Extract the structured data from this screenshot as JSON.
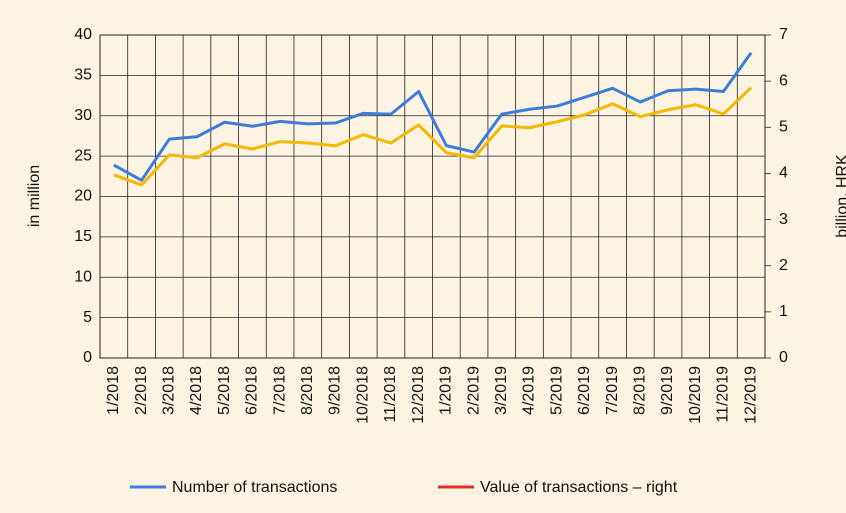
{
  "chart_data": {
    "type": "line",
    "y_label": "in million",
    "y2_label": "billion, HRK",
    "categories": [
      "1/2018",
      "2/2018",
      "3/2018",
      "4/2018",
      "5/2018",
      "6/2018",
      "7/2018",
      "8/2018",
      "9/2018",
      "10/2018",
      "11/2018",
      "12/2018",
      "1/2019",
      "2/2019",
      "3/2019",
      "4/2019",
      "5/2019",
      "6/2019",
      "7/2019",
      "8/2019",
      "9/2019",
      "10/2019",
      "11/2019",
      "12/2019"
    ],
    "series": [
      {
        "name": "Number of transactions",
        "color": "#3b7dd8",
        "legend_color": "#3b7dd8",
        "values": [
          23.9,
          22.0,
          27.1,
          27.4,
          29.2,
          28.7,
          29.3,
          29.0,
          29.1,
          30.3,
          30.2,
          33.0,
          26.3,
          25.5,
          30.2,
          30.8,
          31.2,
          32.3,
          33.4,
          31.7,
          33.1,
          33.3,
          33.0,
          37.8
        ]
      },
      {
        "name": "Value of transactions – right",
        "color": "#f5b800",
        "legend_color": "#e5302a",
        "axis": "y2",
        "values": [
          3.97,
          3.75,
          4.4,
          4.34,
          4.64,
          4.53,
          4.69,
          4.66,
          4.6,
          4.84,
          4.66,
          5.05,
          4.45,
          4.34,
          5.03,
          4.99,
          5.12,
          5.27,
          5.51,
          5.23,
          5.38,
          5.49,
          5.29,
          5.86
        ]
      }
    ],
    "ylim": [
      0,
      40
    ],
    "yticks": [
      0,
      5,
      10,
      15,
      20,
      25,
      30,
      35,
      40
    ],
    "y2lim": [
      0,
      7
    ],
    "y2ticks": [
      0,
      1,
      2,
      3,
      4,
      5,
      6,
      7
    ],
    "grid": true
  }
}
